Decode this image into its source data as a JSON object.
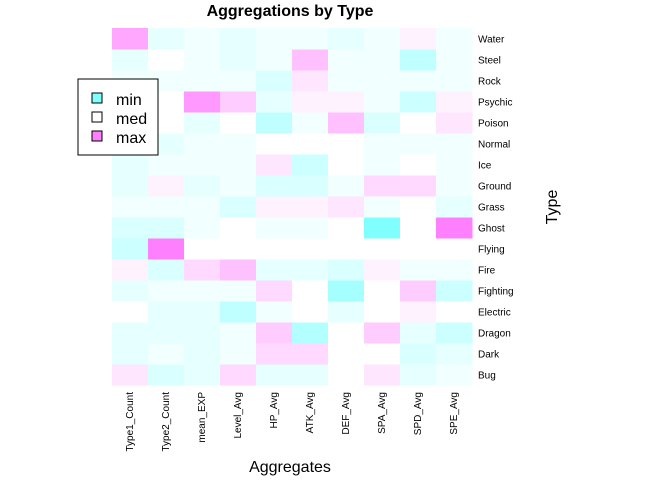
{
  "chart_data": {
    "type": "heatmap",
    "title": "Aggregations by Type",
    "xlabel": "Aggregates",
    "ylabel": "Type",
    "legend": {
      "position": "top-left",
      "entries": [
        "min",
        "med",
        "max"
      ],
      "colors": [
        "#80FFFF",
        "#FFFFFF",
        "#FF80FF"
      ]
    },
    "x_categories": [
      "Type1_Count",
      "Type2_Count",
      "mean_EXP",
      "Level_Avg",
      "HP_Avg",
      "ATK_Avg",
      "DEF_Avg",
      "SPA_Avg",
      "SPD_Avg",
      "SPE_Avg"
    ],
    "y_categories": [
      "Bug",
      "Dark",
      "Dragon",
      "Electric",
      "Fighting",
      "Fire",
      "Flying",
      "Ghost",
      "Grass",
      "Ground",
      "Ice",
      "Normal",
      "Poison",
      "Psychic",
      "Rock",
      "Steel",
      "Water"
    ],
    "color_scale": {
      "low": "#80FFFF",
      "mid": "#FFFFFF",
      "high": "#FF80FF",
      "range": [
        -1,
        1
      ]
    },
    "values": [
      [
        0.2,
        -0.3,
        -0.2,
        0.3,
        -0.2,
        -0.2,
        0.0,
        0.2,
        -0.2,
        -0.1
      ],
      [
        -0.2,
        -0.1,
        -0.2,
        -0.1,
        0.3,
        0.3,
        0.0,
        0.0,
        -0.3,
        -0.2
      ],
      [
        -0.2,
        -0.2,
        -0.2,
        -0.1,
        0.4,
        -0.6,
        0.0,
        0.4,
        -0.2,
        -0.4
      ],
      [
        0.0,
        -0.2,
        -0.2,
        -0.5,
        -0.1,
        0.0,
        -0.2,
        0.0,
        0.1,
        0.0
      ],
      [
        -0.2,
        -0.1,
        -0.1,
        -0.1,
        0.3,
        0.0,
        -0.7,
        0.0,
        0.4,
        -0.4
      ],
      [
        0.1,
        -0.3,
        0.3,
        0.5,
        -0.2,
        -0.2,
        -0.3,
        0.1,
        -0.1,
        -0.1
      ],
      [
        -0.4,
        1.0,
        0.0,
        0.0,
        0.0,
        0.0,
        0.0,
        0.0,
        0.0,
        0.0
      ],
      [
        -0.3,
        -0.3,
        -0.1,
        0.0,
        -0.1,
        -0.1,
        0.0,
        -1.0,
        0.0,
        1.0
      ],
      [
        -0.1,
        -0.1,
        -0.1,
        -0.3,
        0.1,
        0.1,
        0.2,
        -0.1,
        0.0,
        -0.2
      ],
      [
        -0.2,
        0.1,
        -0.2,
        -0.1,
        -0.3,
        -0.3,
        -0.1,
        0.3,
        0.3,
        -0.1
      ],
      [
        -0.2,
        -0.1,
        -0.1,
        -0.1,
        0.2,
        -0.4,
        0.0,
        -0.1,
        0.0,
        -0.1
      ],
      [
        -0.1,
        -0.2,
        -0.1,
        -0.1,
        0.0,
        0.0,
        0.0,
        -0.1,
        -0.1,
        -0.1
      ],
      [
        -0.1,
        0.0,
        -0.2,
        0.0,
        -0.5,
        -0.1,
        0.5,
        -0.3,
        0.0,
        0.2
      ],
      [
        0.0,
        0.0,
        0.8,
        0.4,
        -0.2,
        0.1,
        0.1,
        -0.1,
        -0.4,
        0.1
      ],
      [
        -0.1,
        -0.1,
        -0.1,
        -0.1,
        -0.3,
        0.2,
        -0.1,
        -0.1,
        -0.1,
        -0.1
      ],
      [
        -0.2,
        0.0,
        -0.1,
        -0.2,
        -0.1,
        0.5,
        -0.1,
        -0.1,
        -0.5,
        -0.1
      ],
      [
        0.7,
        -0.2,
        -0.1,
        -0.2,
        -0.1,
        -0.1,
        -0.2,
        -0.1,
        0.1,
        -0.1
      ]
    ]
  }
}
